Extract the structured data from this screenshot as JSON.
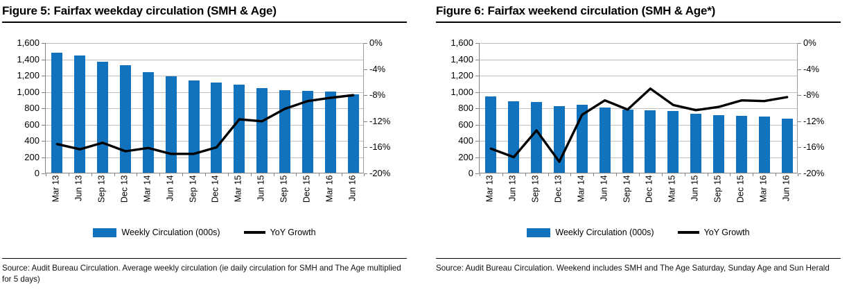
{
  "colors": {
    "bar_blue": "#1173be",
    "line_black": "#000000",
    "grid_gray": "#bfbfbf",
    "axis_gray": "#808080"
  },
  "chart_data": [
    {
      "type": "combo-bar-line",
      "title": "Figure 5: Fairfax weekday circulation (SMH & Age)",
      "categories": [
        "Mar 13",
        "Jun 13",
        "Sep 13",
        "Dec 13",
        "Mar 14",
        "Jun 14",
        "Sep 14",
        "Dec 14",
        "Mar 15",
        "Jun 15",
        "Sep 15",
        "Dec 15",
        "Mar 16",
        "Jun 16"
      ],
      "series": [
        {
          "name": "Weekly Circulation (000s)",
          "type": "bar",
          "axis": "left",
          "values": [
            1470,
            1435,
            1360,
            1320,
            1235,
            1180,
            1130,
            1110,
            1085,
            1035,
            1010,
            1005,
            1000,
            960
          ]
        },
        {
          "name": "YoY Growth",
          "type": "line",
          "axis": "right",
          "values": [
            -15.5,
            -16.3,
            -15.3,
            -16.6,
            -16.1,
            -17.0,
            -17.0,
            -16.0,
            -11.7,
            -12.0,
            -10.1,
            -8.9,
            -8.4,
            -8.0
          ]
        }
      ],
      "left_axis": {
        "min": 0,
        "max": 1600,
        "ticks": [
          "1,600",
          "1,400",
          "1,200",
          "1,000",
          "800",
          "600",
          "400",
          "200",
          "0"
        ]
      },
      "right_axis": {
        "min": -20,
        "max": 0,
        "ticks": [
          "0%",
          "-4%",
          "-8%",
          "-12%",
          "-16%",
          "-20%"
        ]
      },
      "grid": true,
      "legend_position": "bottom",
      "source": "Source: Audit Bureau Circulation. Average weekly circulation (ie daily circulation for SMH and The Age multiplied for 5 days)"
    },
    {
      "type": "combo-bar-line",
      "title": "Figure 6: Fairfax weekend circulation (SMH & Age*)",
      "categories": [
        "Mar 13",
        "Jun 13",
        "Sep 13",
        "Dec 13",
        "Mar 14",
        "Jun 14",
        "Sep 14",
        "Dec 14",
        "Mar 15",
        "Jun 15",
        "Sep 15",
        "Dec 15",
        "Mar 16",
        "Jun 16"
      ],
      "series": [
        {
          "name": "Weekly Circulation (000s)",
          "type": "bar",
          "axis": "left",
          "values": [
            940,
            880,
            865,
            820,
            835,
            800,
            775,
            770,
            755,
            725,
            705,
            695,
            690,
            665
          ]
        },
        {
          "name": "YoY Growth",
          "type": "line",
          "axis": "right",
          "values": [
            -16.2,
            -17.5,
            -13.4,
            -18.2,
            -11.0,
            -8.8,
            -10.2,
            -7.0,
            -9.5,
            -10.3,
            -9.8,
            -8.8,
            -8.9,
            -8.3
          ]
        }
      ],
      "left_axis": {
        "min": 0,
        "max": 1600,
        "ticks": [
          "1,600",
          "1,400",
          "1,200",
          "1,000",
          "800",
          "600",
          "400",
          "200",
          "0"
        ]
      },
      "right_axis": {
        "min": -20,
        "max": 0,
        "ticks": [
          "0%",
          "-4%",
          "-8%",
          "-12%",
          "-16%",
          "-20%"
        ]
      },
      "grid": true,
      "legend_position": "bottom",
      "source": "Source: Audit Bureau Circulation. Weekend includes SMH and The Age Saturday, Sunday Age and Sun Herald"
    }
  ]
}
